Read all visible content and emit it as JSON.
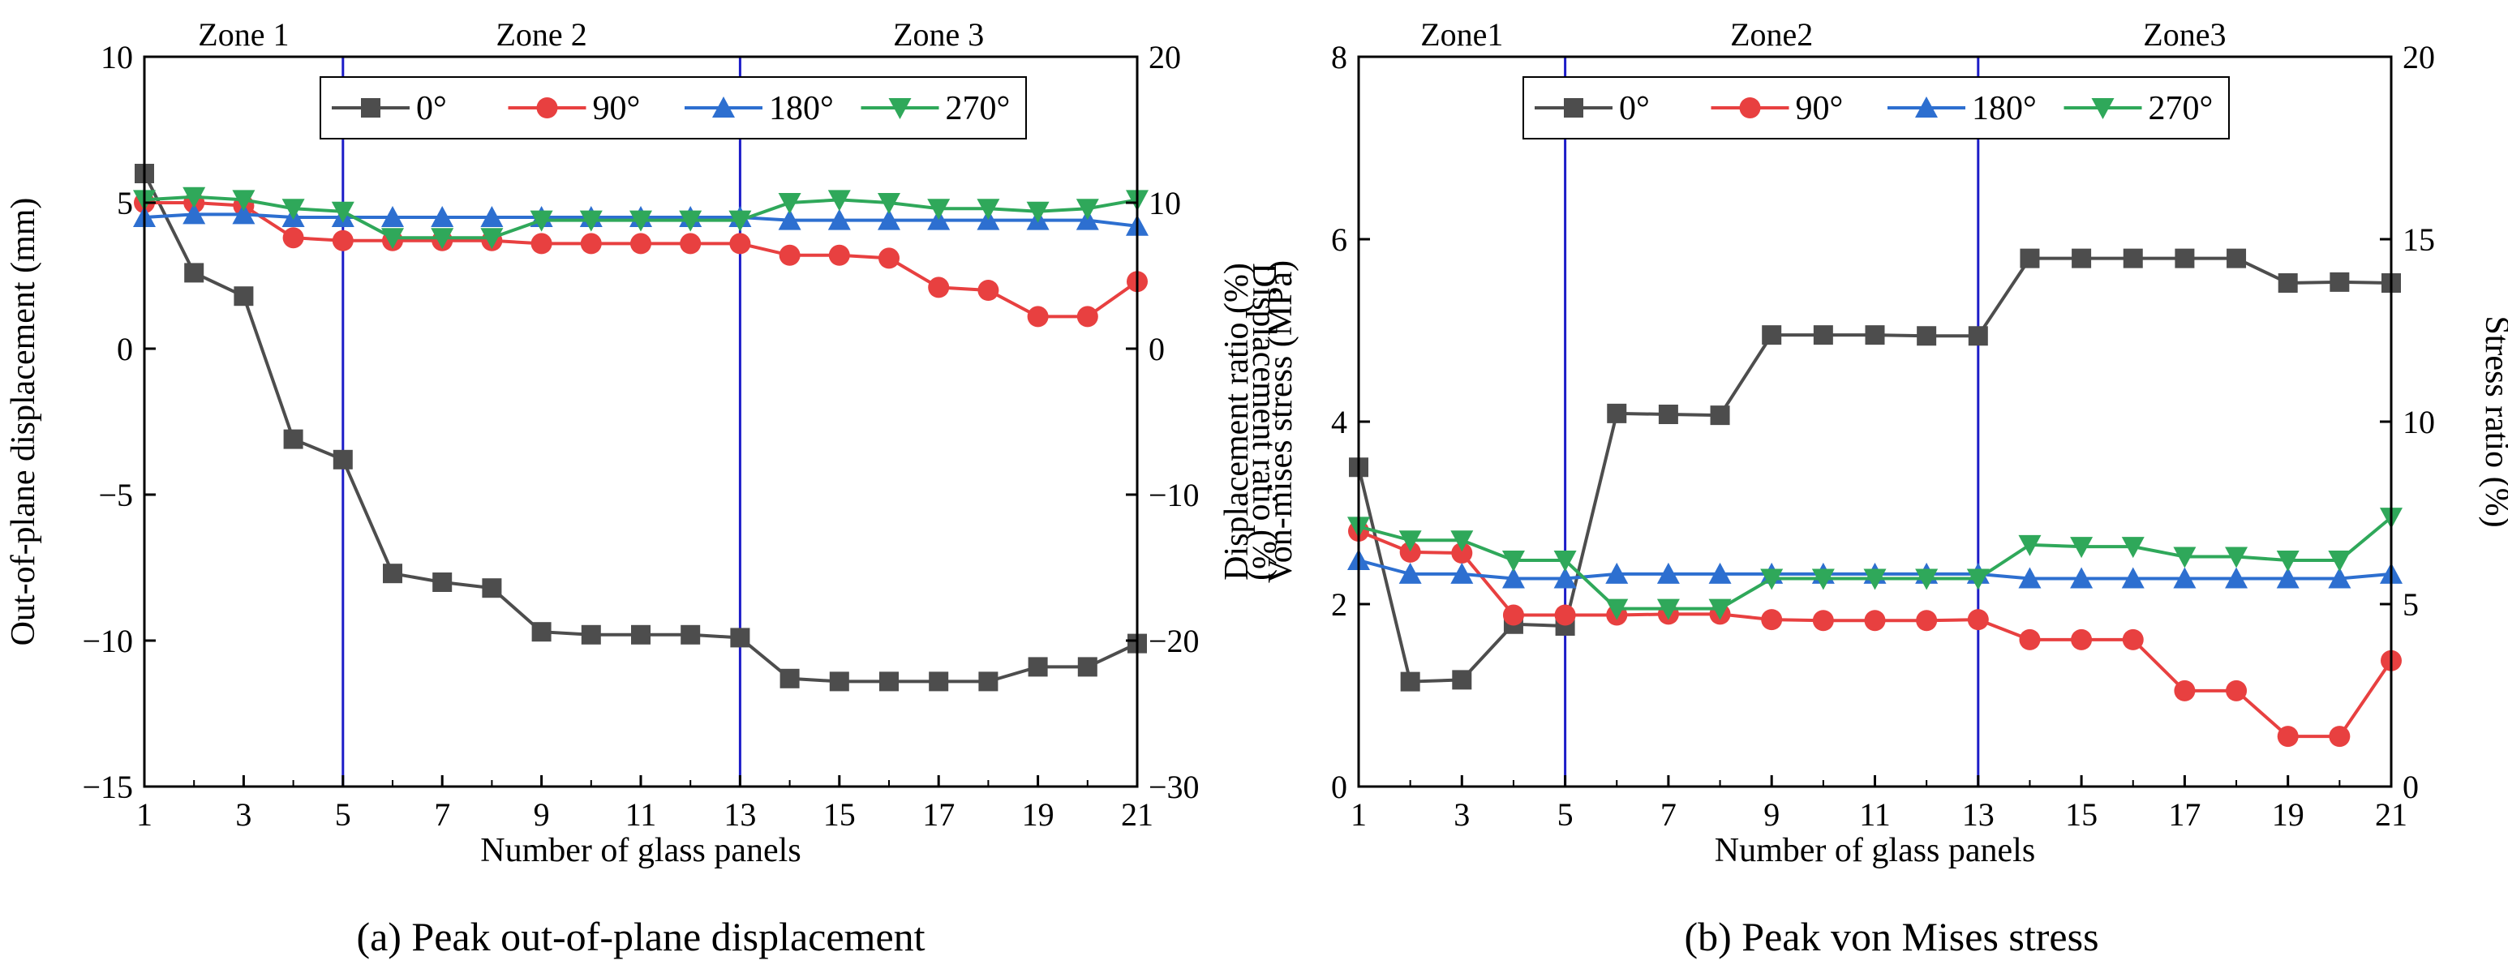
{
  "figure": {
    "caption_a": "(a) Peak out-of-plane displacement",
    "caption_b": "(b) Peak von Mises stress"
  },
  "chart_data": [
    {
      "type": "line",
      "id": "a",
      "title": "(a) Peak out-of-plane displacement",
      "xlabel": "Number of glass panels",
      "ylabel": "Out-of-plane displacement (mm)",
      "ylabel_right": "Displacement ratio (%)",
      "xlim": [
        1,
        21
      ],
      "ylim": [
        -15,
        10
      ],
      "ylim_right": [
        -30,
        20
      ],
      "x_ticks": [
        1,
        3,
        5,
        7,
        9,
        11,
        13,
        15,
        17,
        19,
        21
      ],
      "y_ticks": [
        10,
        5,
        0,
        -5,
        -10,
        -15
      ],
      "y_tick_labels": [
        "10",
        "5",
        "0",
        "−5",
        "−10",
        "−15"
      ],
      "y_ticks_right": [
        20,
        10,
        0,
        -10,
        -20,
        -30
      ],
      "y_tick_labels_right": [
        "20",
        "10",
        "0",
        "−10",
        "−20",
        "−30"
      ],
      "zone_lines": [
        5,
        13
      ],
      "zones": [
        {
          "label": "Zone 1",
          "from": 1,
          "to": 5
        },
        {
          "label": "Zone 2",
          "from": 5,
          "to": 13
        },
        {
          "label": "Zone 3",
          "from": 13,
          "to": 21
        }
      ],
      "legend_position": "top-center",
      "x": [
        1,
        2,
        3,
        4,
        5,
        6,
        7,
        8,
        9,
        10,
        11,
        12,
        13,
        14,
        15,
        16,
        17,
        18,
        19,
        20,
        21
      ],
      "series": [
        {
          "name": "0°",
          "color": "#4d4d4d",
          "marker": "square",
          "values": [
            6.0,
            2.6,
            1.8,
            -3.1,
            -3.8,
            -7.7,
            -8.0,
            -8.2,
            -9.7,
            -9.8,
            -9.8,
            -9.8,
            -9.9,
            -11.3,
            -11.4,
            -11.4,
            -11.4,
            -11.4,
            -10.9,
            -10.9,
            -10.1
          ]
        },
        {
          "name": "90°",
          "color": "#e84040",
          "marker": "circle",
          "values": [
            5.0,
            5.0,
            4.9,
            3.8,
            3.7,
            3.7,
            3.7,
            3.7,
            3.6,
            3.6,
            3.6,
            3.6,
            3.6,
            3.2,
            3.2,
            3.1,
            2.1,
            2.0,
            1.1,
            1.1,
            2.3
          ]
        },
        {
          "name": "180°",
          "color": "#2d6fd0",
          "marker": "triangle-up",
          "values": [
            4.5,
            4.6,
            4.6,
            4.5,
            4.5,
            4.5,
            4.5,
            4.5,
            4.5,
            4.5,
            4.5,
            4.5,
            4.5,
            4.4,
            4.4,
            4.4,
            4.4,
            4.4,
            4.4,
            4.4,
            4.2
          ]
        },
        {
          "name": "270°",
          "color": "#2fa85a",
          "marker": "triangle-down",
          "values": [
            5.1,
            5.2,
            5.1,
            4.8,
            4.7,
            3.8,
            3.8,
            3.8,
            4.4,
            4.4,
            4.4,
            4.4,
            4.4,
            5.0,
            5.1,
            5.0,
            4.8,
            4.8,
            4.7,
            4.8,
            5.1
          ]
        }
      ]
    },
    {
      "type": "line",
      "id": "b",
      "title": "(b) Peak von Mises stress",
      "xlabel": "Number of glass panels",
      "ylabel": "Von-mises stress (MPa)",
      "ylabel_right": "Stress ratio (%)",
      "xlim": [
        1,
        21
      ],
      "ylim": [
        0,
        8
      ],
      "ylim_right": [
        0,
        20
      ],
      "x_ticks": [
        1,
        3,
        5,
        7,
        9,
        11,
        13,
        15,
        17,
        19,
        21
      ],
      "y_ticks": [
        8,
        6,
        4,
        2,
        0
      ],
      "y_tick_labels": [
        "8",
        "6",
        "4",
        "2",
        "0"
      ],
      "y_ticks_right": [
        20,
        15,
        10,
        5,
        0
      ],
      "y_tick_labels_right": [
        "20",
        "15",
        "10",
        "5",
        "0"
      ],
      "zone_lines": [
        5,
        13
      ],
      "zones": [
        {
          "label": "Zone1",
          "from": 1,
          "to": 5
        },
        {
          "label": "Zone2",
          "from": 5,
          "to": 13
        },
        {
          "label": "Zone3",
          "from": 13,
          "to": 21
        }
      ],
      "legend_position": "top-center",
      "x": [
        1,
        2,
        3,
        4,
        5,
        6,
        7,
        8,
        9,
        10,
        11,
        12,
        13,
        14,
        15,
        16,
        17,
        18,
        19,
        20,
        21
      ],
      "series": [
        {
          "name": "0°",
          "color": "#4d4d4d",
          "marker": "square",
          "values": [
            3.5,
            1.15,
            1.17,
            1.78,
            1.76,
            4.09,
            4.08,
            4.07,
            4.95,
            4.95,
            4.95,
            4.94,
            4.94,
            5.79,
            5.79,
            5.79,
            5.79,
            5.79,
            5.52,
            5.53,
            5.52
          ]
        },
        {
          "name": "90°",
          "color": "#e84040",
          "marker": "circle",
          "values": [
            2.8,
            2.57,
            2.56,
            1.88,
            1.88,
            1.88,
            1.89,
            1.89,
            1.83,
            1.82,
            1.82,
            1.82,
            1.83,
            1.61,
            1.61,
            1.61,
            1.05,
            1.05,
            0.55,
            0.55,
            1.38
          ]
        },
        {
          "name": "180°",
          "color": "#2d6fd0",
          "marker": "triangle-up",
          "values": [
            2.48,
            2.33,
            2.33,
            2.28,
            2.28,
            2.33,
            2.33,
            2.33,
            2.33,
            2.33,
            2.33,
            2.33,
            2.33,
            2.28,
            2.28,
            2.28,
            2.28,
            2.28,
            2.28,
            2.28,
            2.33
          ]
        },
        {
          "name": "270°",
          "color": "#2fa85a",
          "marker": "triangle-down",
          "values": [
            2.85,
            2.7,
            2.7,
            2.48,
            2.48,
            1.95,
            1.95,
            1.95,
            2.28,
            2.28,
            2.28,
            2.28,
            2.28,
            2.65,
            2.63,
            2.63,
            2.52,
            2.52,
            2.48,
            2.48,
            2.95
          ]
        }
      ]
    }
  ]
}
